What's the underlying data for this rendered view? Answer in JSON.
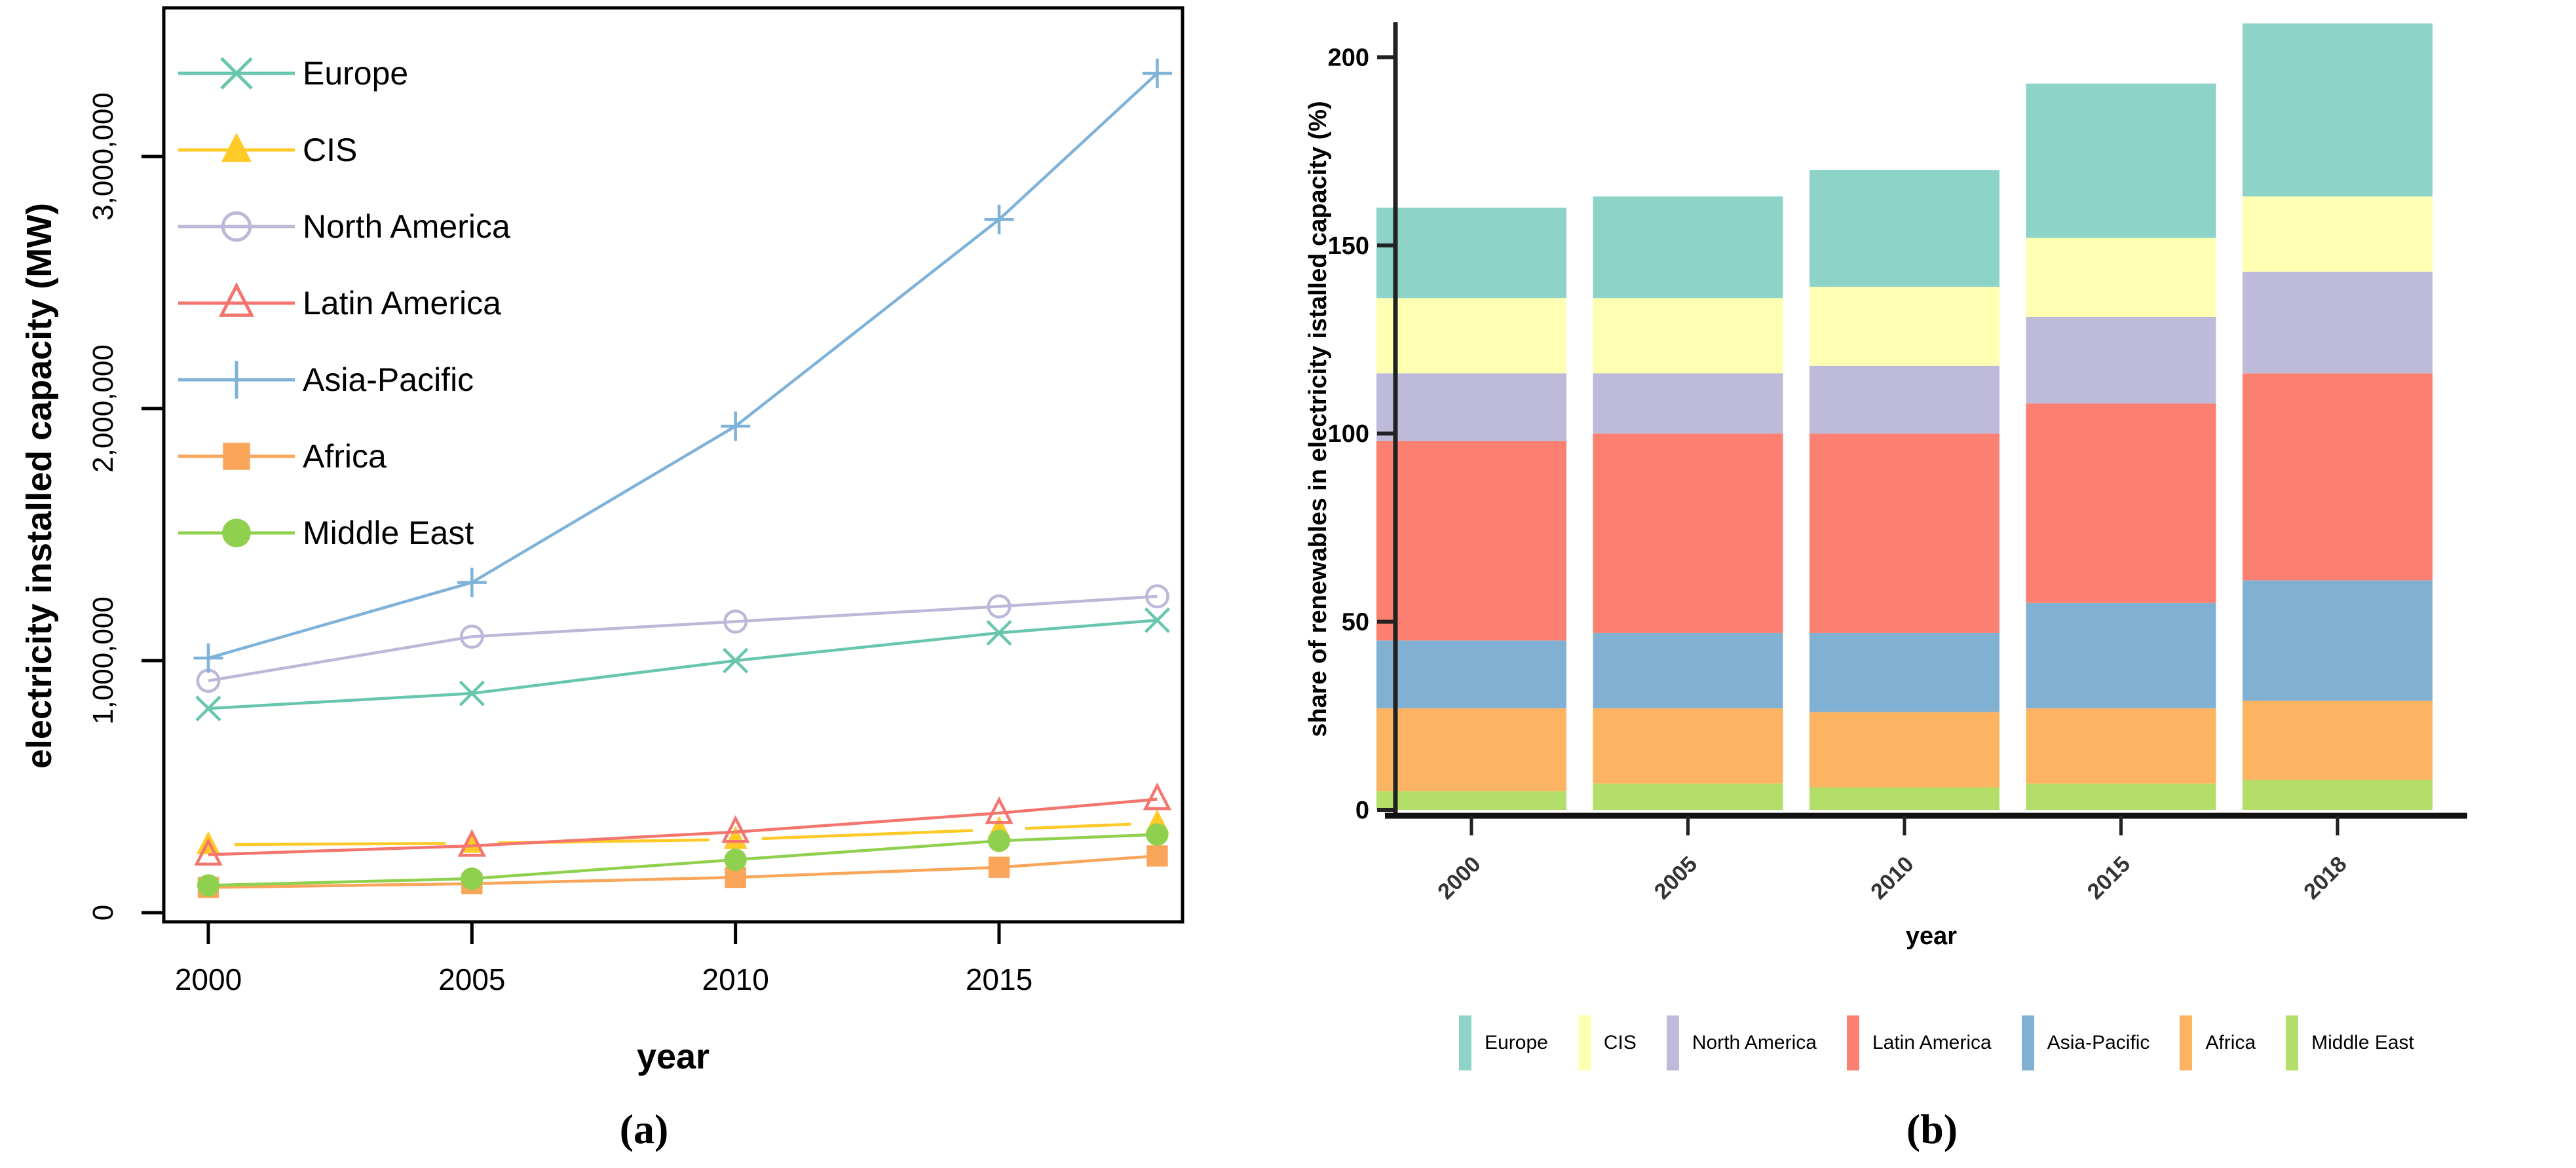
{
  "captions": {
    "a": "(a)",
    "b": "(b)"
  },
  "chart_data": [
    {
      "id": "capacity-lines",
      "type": "line",
      "title": "",
      "xlabel": "year",
      "ylabel": "electricity installed capacity (MW)",
      "x": [
        2000,
        2005,
        2010,
        2015,
        2018
      ],
      "x_tick_years": [
        2000,
        2005,
        2010,
        2015
      ],
      "x_tick_labels": [
        "2000",
        "2005",
        "2010",
        "2015"
      ],
      "y_ticks": [
        0,
        1000000,
        2000000,
        3000000
      ],
      "y_tick_labels": [
        "0",
        "1,000,000",
        "2,000,000",
        "3,000,000"
      ],
      "ylim": [
        0,
        3590000
      ],
      "grid": false,
      "legend_position": "top-left-inside",
      "series": [
        {
          "name": "Europe",
          "color": "#69c6ae",
          "marker": "x",
          "line_gap": false,
          "values": [
            810000,
            870000,
            1000000,
            1110000,
            1160000
          ]
        },
        {
          "name": "CIS",
          "color": "#ffc926",
          "marker": "triangle-filled",
          "line_gap": true,
          "values": [
            270000,
            275000,
            290000,
            330000,
            355000
          ]
        },
        {
          "name": "North America",
          "color": "#bcb9d8",
          "marker": "circle-open",
          "line_gap": false,
          "values": [
            920000,
            1095000,
            1155000,
            1215000,
            1255000
          ]
        },
        {
          "name": "Latin America",
          "color": "#f4756e",
          "marker": "triangle-open",
          "line_gap": false,
          "values": [
            230000,
            265000,
            320000,
            395000,
            450000
          ]
        },
        {
          "name": "Asia-Pacific",
          "color": "#7fb2d9",
          "marker": "plus",
          "line_gap": false,
          "values": [
            1010000,
            1310000,
            1930000,
            2750000,
            3330000
          ]
        },
        {
          "name": "Africa",
          "color": "#f9a65b",
          "marker": "square-filled",
          "line_gap": false,
          "values": [
            100000,
            115000,
            140000,
            180000,
            225000
          ]
        },
        {
          "name": "Middle East",
          "color": "#8fd14f",
          "marker": "circle-filled",
          "line_gap": false,
          "values": [
            108000,
            135000,
            210000,
            285000,
            310000
          ]
        }
      ]
    },
    {
      "id": "renewables-share-stacked",
      "type": "bar",
      "stacked": true,
      "title": "",
      "xlabel": "year",
      "ylabel": "share of renewables in electricity istalled capacity (%)",
      "categories": [
        "2000",
        "2005",
        "2010",
        "2015",
        "2018"
      ],
      "y_ticks": [
        0,
        50,
        100,
        150,
        200
      ],
      "y_tick_labels": [
        "0",
        "50",
        "100",
        "150",
        "200"
      ],
      "ylim": [
        0,
        212
      ],
      "grid": false,
      "legend_position": "bottom",
      "legend_order": [
        "Europe",
        "CIS",
        "North America",
        "Latin America",
        "Asia-Pacific",
        "Africa",
        "Middle East"
      ],
      "series": [
        {
          "name": "Middle East",
          "color": "#b3de69",
          "values": [
            5,
            7,
            6,
            7,
            8
          ]
        },
        {
          "name": "Africa",
          "color": "#fdb462",
          "values": [
            22,
            20,
            20,
            20,
            21
          ]
        },
        {
          "name": "Asia-Pacific",
          "color": "#80b1d3",
          "values": [
            18,
            20,
            21,
            28,
            32
          ]
        },
        {
          "name": "Latin America",
          "color": "#fb8072",
          "values": [
            53,
            53,
            53,
            53,
            55
          ]
        },
        {
          "name": "North America",
          "color": "#bebada",
          "values": [
            18,
            16,
            18,
            23,
            27
          ]
        },
        {
          "name": "CIS",
          "color": "#ffffb3",
          "values": [
            20,
            20,
            21,
            21,
            20
          ]
        },
        {
          "name": "Europe",
          "color": "#8dd3c7",
          "values": [
            24,
            27,
            31,
            41,
            46
          ]
        }
      ]
    }
  ]
}
